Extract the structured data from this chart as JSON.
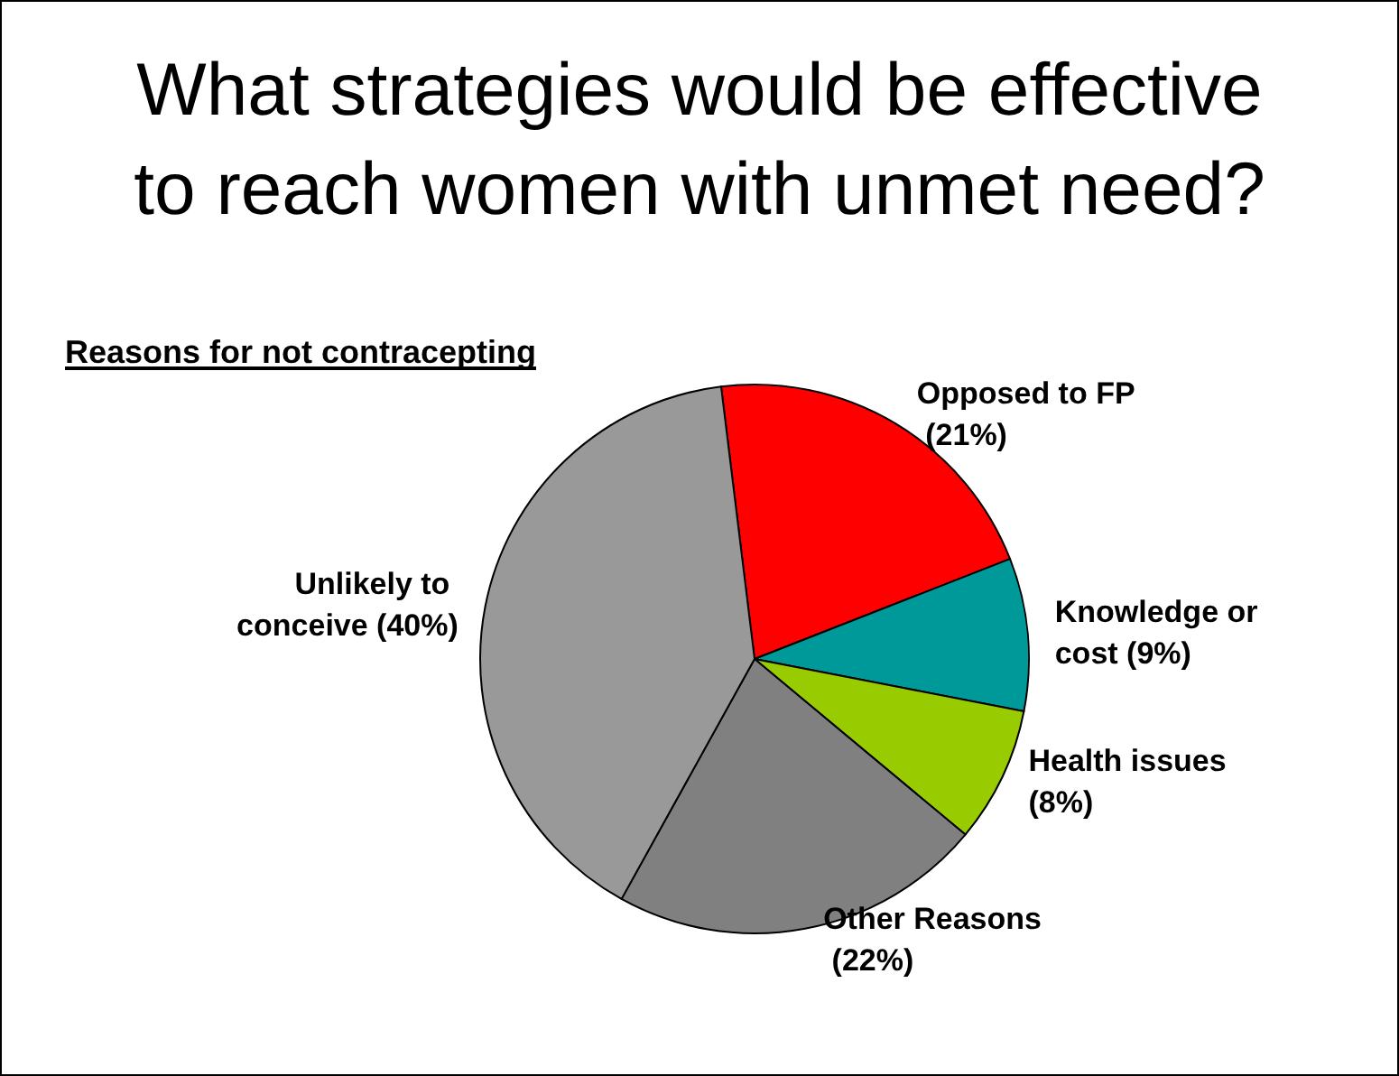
{
  "chart_data": {
    "type": "pie",
    "title": "What strategies would be effective\nto reach women with unmet need?",
    "subtitle": "Reasons for not contracepting",
    "categories": [
      "Opposed to FP",
      "Knowledge or cost",
      "Health issues",
      "Other Reasons",
      "Unlikely to conceive"
    ],
    "values": [
      21,
      9,
      8,
      22,
      40
    ],
    "value_labels": [
      "(21%)",
      "(9%)",
      "(8%)",
      "(22%)",
      "(40%)"
    ],
    "colors": [
      "#ff0000",
      "#009999",
      "#99cc00",
      "#808080",
      "#999999"
    ],
    "legend": false
  }
}
